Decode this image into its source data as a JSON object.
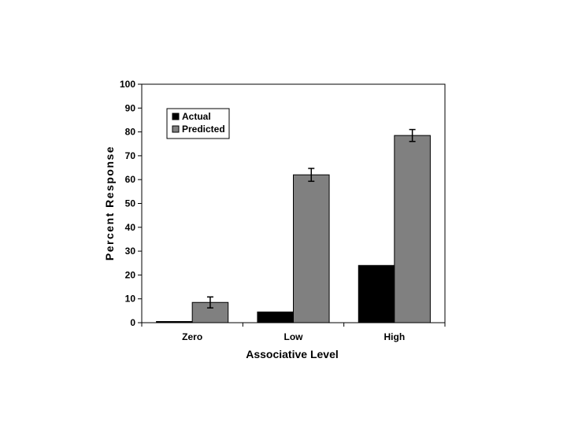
{
  "chart_data": {
    "type": "bar",
    "categories": [
      "Zero",
      "Low",
      "High"
    ],
    "series": [
      {
        "name": "Actual",
        "values": [
          0.5,
          4.5,
          24
        ],
        "color": "#000000"
      },
      {
        "name": "Predicted",
        "values": [
          8.5,
          62,
          78.5
        ],
        "color": "#808080",
        "error": [
          2.3,
          2.7,
          2.5
        ]
      }
    ],
    "xlabel": "Associative Level",
    "ylabel": "Percent Response",
    "ylim": [
      0,
      100
    ],
    "yticks": [
      0,
      10,
      20,
      30,
      40,
      50,
      60,
      70,
      80,
      90,
      100
    ],
    "grid": false,
    "legend": "top-left"
  }
}
